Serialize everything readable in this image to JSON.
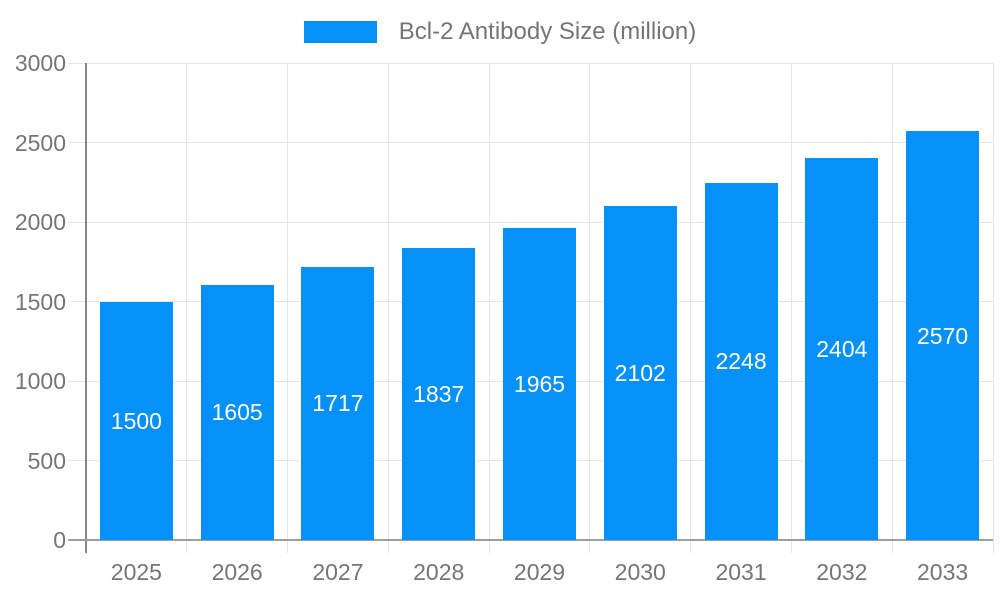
{
  "chart_data": {
    "type": "bar",
    "title": "Bcl-2 Antibody Size (million)",
    "categories": [
      "2025",
      "2026",
      "2027",
      "2028",
      "2029",
      "2030",
      "2031",
      "2032",
      "2033"
    ],
    "values": [
      1500,
      1605,
      1717,
      1837,
      1965,
      2102,
      2248,
      2404,
      2570
    ],
    "value_labels": [
      "1500",
      "1605",
      "1717",
      "1837",
      "1965",
      "2102",
      "2248",
      "2404",
      "2570"
    ],
    "xlabel": "",
    "ylabel": "",
    "ylim": [
      0,
      3000
    ],
    "yticks": [
      0,
      500,
      1000,
      1500,
      2000,
      2500,
      3000
    ],
    "ytick_labels": [
      "0",
      "500",
      "1000",
      "1500",
      "2000",
      "2500",
      "3000"
    ],
    "grid": true,
    "legend_position": "top-center",
    "colors": {
      "bar": "#0591f7",
      "value_label": "#ffffff",
      "tick_label": "#757575",
      "legend_text": "#757575",
      "gridline": "#e6e6e6",
      "axis_line": "#878787",
      "baseline": "#9e9e9e",
      "background": "#ffffff"
    }
  }
}
